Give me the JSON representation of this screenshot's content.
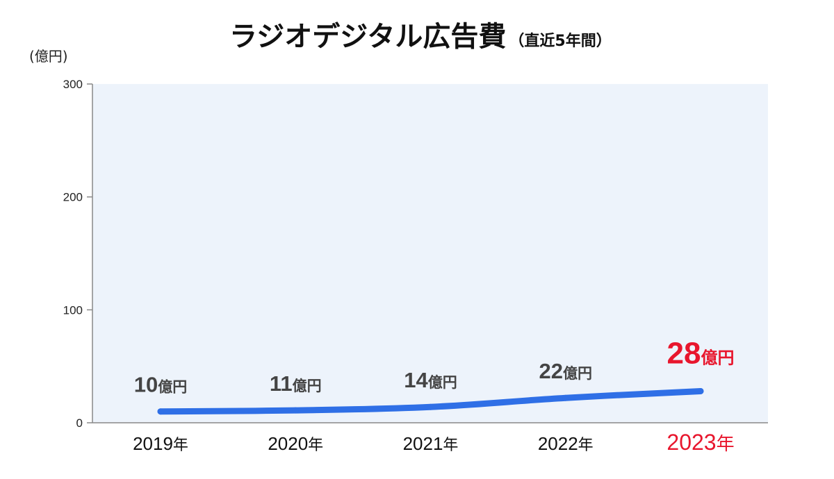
{
  "chart_data": {
    "type": "line",
    "title": "ラジオデジタル広告費",
    "subtitle": "（直近5年間）",
    "ylabel": "(億円)",
    "xlabel": "",
    "categories": [
      "2019年",
      "2020年",
      "2021年",
      "2022年",
      "2023年"
    ],
    "x_years": [
      "2019",
      "2020",
      "2021",
      "2022",
      "2023"
    ],
    "year_suffix": "年",
    "values": [
      10,
      11,
      14,
      22,
      28
    ],
    "value_unit": "億円",
    "ylim": [
      0,
      300
    ],
    "yticks": [
      "0",
      "100",
      "200",
      "300"
    ],
    "ytick_values": [
      0,
      100,
      200,
      300
    ],
    "grid": false,
    "highlight_index": 4
  },
  "colors": {
    "line": "#2f6fe6",
    "plot_background": "#edf3fb",
    "axis": "#888888",
    "label_default": "#444444",
    "highlight": "#e8162d",
    "xtick_default": "#111111"
  }
}
